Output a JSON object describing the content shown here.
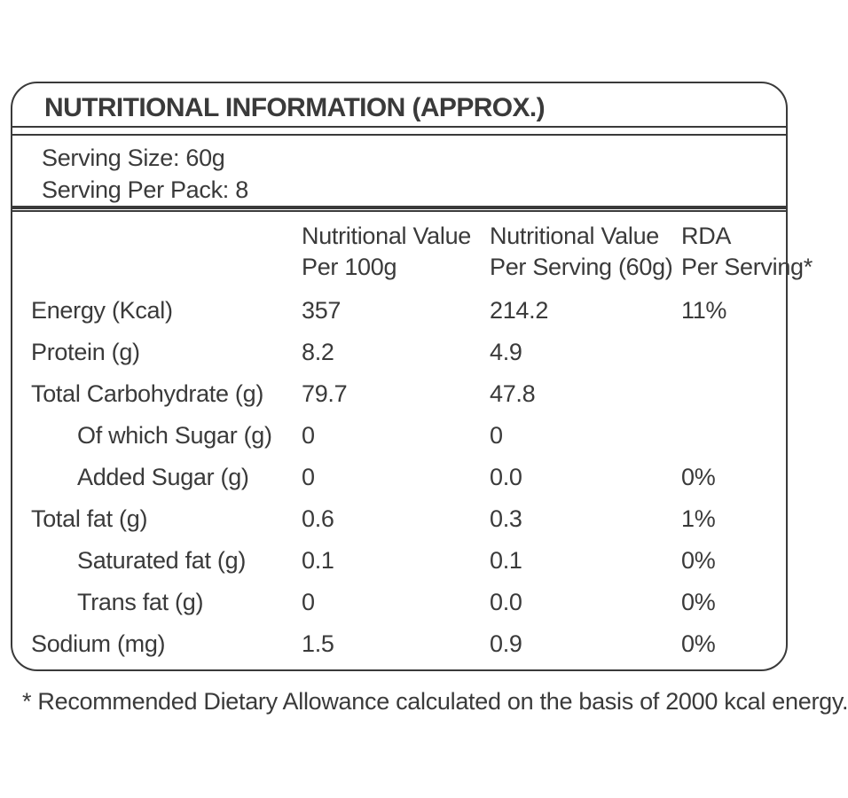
{
  "title": "NUTRITIONAL INFORMATION (APPROX.)",
  "serving": {
    "size_label": "Serving Size: 60g",
    "per_pack_label": "Serving Per Pack: 8"
  },
  "table": {
    "columns": {
      "per_100g_line1": "Nutritional Value",
      "per_100g_line2": "Per 100g",
      "per_serving_line1": "Nutritional Value",
      "per_serving_line2": "Per Serving (60g)",
      "rda_line1": "RDA",
      "rda_line2": "Per Serving*"
    },
    "rows": [
      {
        "label": "Energy (Kcal)",
        "per_100g": "357",
        "per_serving": "214.2",
        "rda": "11%"
      },
      {
        "label": "Protein (g)",
        "per_100g": "8.2",
        "per_serving": "4.9",
        "rda": ""
      },
      {
        "label": "Total Carbohydrate (g)",
        "per_100g": "79.7",
        "per_serving": "47.8",
        "rda": ""
      },
      {
        "label": "Of which Sugar (g)",
        "per_100g": "0",
        "per_serving": "0",
        "rda": ""
      },
      {
        "label": "Added Sugar (g)",
        "per_100g": "0",
        "per_serving": "0.0",
        "rda": "0%"
      },
      {
        "label": "Total fat (g)",
        "per_100g": "0.6",
        "per_serving": "0.3",
        "rda": "1%"
      },
      {
        "label": "Saturated fat (g)",
        "per_100g": "0.1",
        "per_serving": "0.1",
        "rda": "0%"
      },
      {
        "label": "Trans fat (g)",
        "per_100g": "0",
        "per_serving": "0.0",
        "rda": "0%"
      },
      {
        "label": "Sodium (mg)",
        "per_100g": "1.5",
        "per_serving": "0.9",
        "rda": "0%"
      }
    ]
  },
  "footnote": "* Recommended Dietary Allowance calculated on the basis of 2000 kcal energy.",
  "colors": {
    "text": "#3a3a3a",
    "border": "#3a3a3a",
    "background": "#ffffff"
  }
}
